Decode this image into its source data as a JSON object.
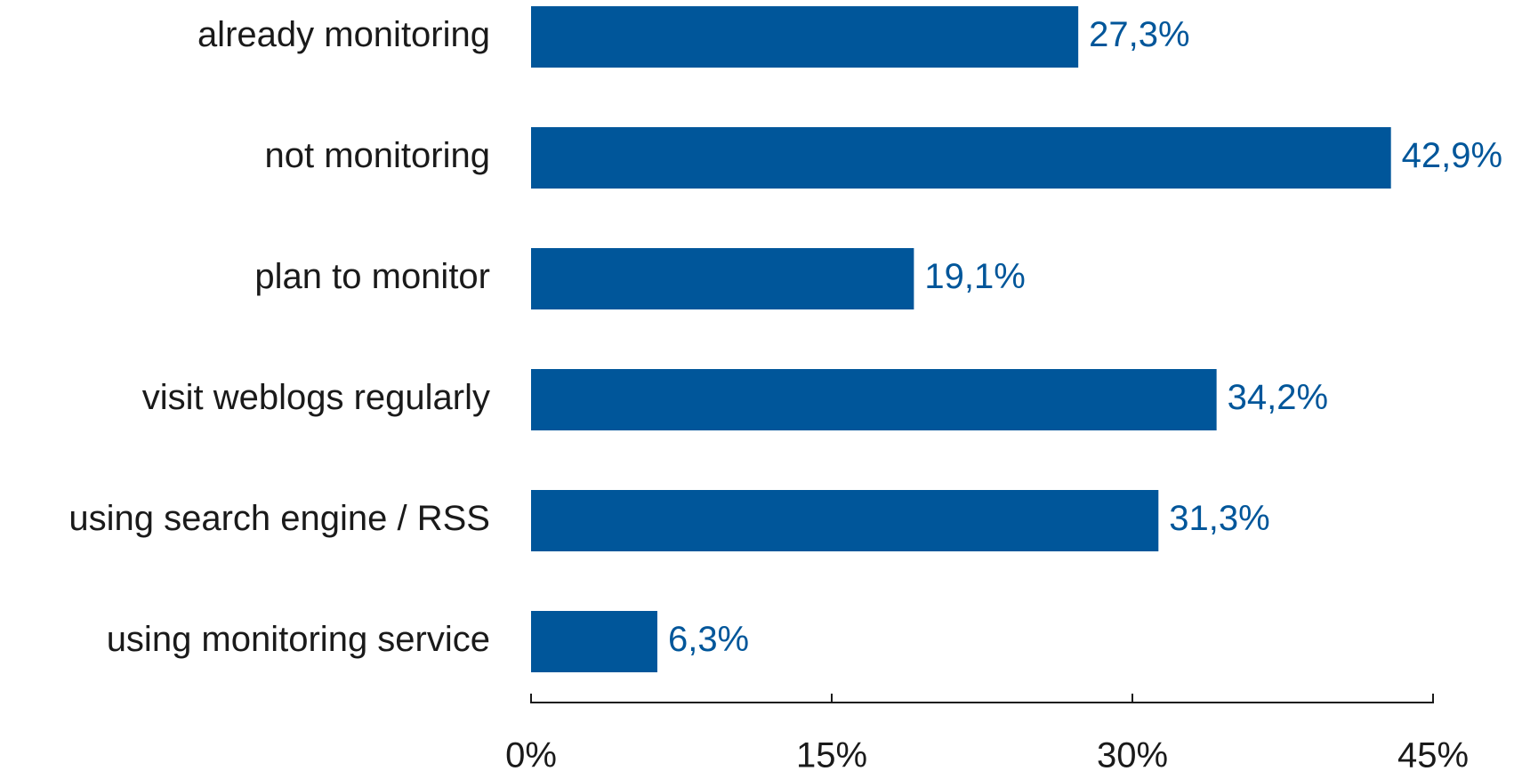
{
  "chart_data": {
    "type": "bar",
    "orientation": "horizontal",
    "categories": [
      "already monitoring",
      "not monitoring",
      "plan to monitor",
      "visit weblogs regularly",
      "using search engine / RSS",
      "using monitoring service"
    ],
    "values": [
      27.3,
      42.9,
      19.1,
      34.2,
      31.3,
      6.3
    ],
    "value_labels": [
      "27,3%",
      "42,9%",
      "19,1%",
      "34,2%",
      "31,3%",
      "6,3%"
    ],
    "color": "#00569a",
    "xlim": [
      0,
      45
    ],
    "xticks": [
      {
        "value": 0,
        "label": "0%"
      },
      {
        "value": 15,
        "label": "15%"
      },
      {
        "value": 30,
        "label": "30%"
      },
      {
        "value": 45,
        "label": "45%"
      }
    ],
    "grid": false
  }
}
